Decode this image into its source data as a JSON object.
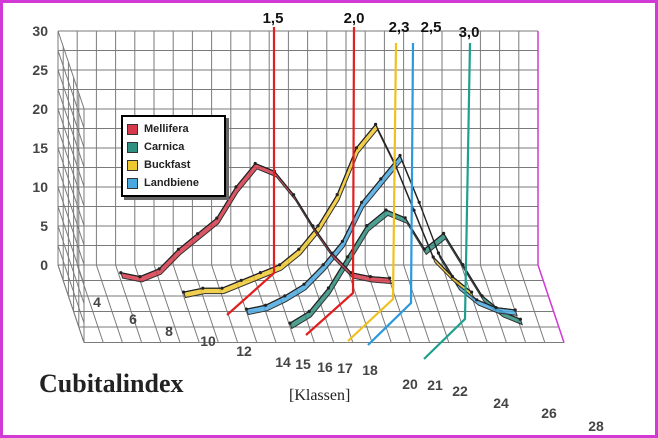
{
  "chart_data": {
    "type": "line",
    "title": "Cubitalindex",
    "xlabel": "[Klassen]",
    "ylabel": "",
    "ylim": [
      0,
      30
    ],
    "yticks": [
      "0",
      "5",
      "10",
      "15",
      "20",
      "25",
      "30"
    ],
    "xticks": [
      "4",
      "6",
      "8",
      "10",
      "12",
      "14",
      "15",
      "16",
      "17",
      "18",
      "20",
      "21",
      "22",
      "24",
      "26",
      "28"
    ],
    "grid": true,
    "legend_position": "left",
    "series": [
      {
        "name": "Mellifera",
        "color": "#d63a4a",
        "x": [
          6,
          7,
          8,
          9,
          10,
          11,
          12,
          13,
          14,
          15,
          16,
          17,
          18,
          19,
          20
        ],
        "y": [
          1,
          0.5,
          1.5,
          4,
          6,
          8,
          12,
          15,
          14,
          11,
          7,
          3.5,
          1,
          0.5,
          0.3
        ]
      },
      {
        "name": "Buckfast",
        "color": "#f0c830",
        "x": [
          9,
          10,
          11,
          12,
          13,
          14,
          15,
          16,
          17,
          18,
          19,
          20,
          21,
          22,
          23,
          24
        ],
        "y": [
          0.5,
          1,
          1,
          2,
          3,
          4,
          6,
          9,
          13,
          19,
          22,
          17,
          11,
          5,
          2.5,
          0.5
        ]
      },
      {
        "name": "Landbiene",
        "color": "#4aa8e0",
        "x": [
          12,
          13,
          14,
          15,
          16,
          17,
          18,
          19,
          20,
          21,
          22,
          23,
          24,
          25,
          26
        ],
        "y": [
          0.3,
          0.8,
          2,
          3.5,
          6,
          9,
          14,
          17,
          20,
          14,
          7.5,
          3.5,
          1.5,
          0.5,
          0.2
        ]
      },
      {
        "name": "Carnica",
        "color": "#2f8f80",
        "x": [
          14,
          15,
          16,
          17,
          18,
          19,
          20,
          21,
          22,
          23,
          24,
          25,
          26
        ],
        "y": [
          0.5,
          2,
          5,
          9,
          13,
          15,
          14,
          10,
          12,
          8,
          4,
          2,
          1
        ]
      }
    ],
    "markers": [
      {
        "label": "1,5",
        "color": "#e02020"
      },
      {
        "label": "2,0",
        "color": "#e02020"
      },
      {
        "label": "2,3",
        "color": "#f0c020"
      },
      {
        "label": "2,5",
        "color": "#2a9ae0"
      },
      {
        "label": "3,0",
        "color": "#1f9f8f"
      }
    ]
  }
}
